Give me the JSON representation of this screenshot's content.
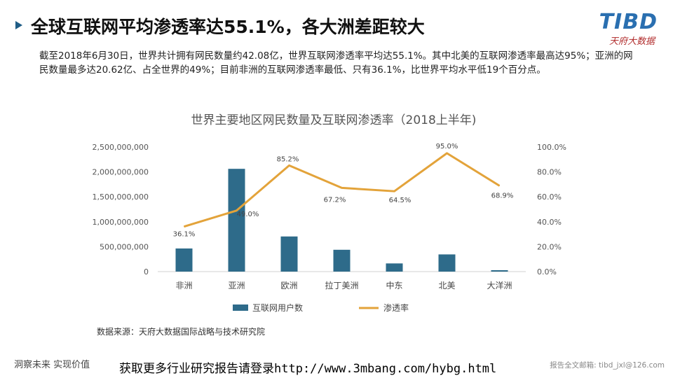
{
  "header": {
    "title": "全球互联网平均渗透率达55.1%，各大洲差距较大",
    "logo_text": "TIBD",
    "logo_sub": "天府大数据"
  },
  "summary": "截至2018年6月30日，世界共计拥有网民数量约42.08亿，世界互联网渗透率平均达55.1%。其中北美的互联网渗透率最高达95%；亚洲的网民数量最多达20.62亿、占全世界的49%；目前非洲的互联网渗透率最低、只有36.1%，比世界平均水平低19个百分点。",
  "chart_data": {
    "type": "bar+line",
    "title": "世界主要地区网民数量及互联网渗透率（2018上半年)",
    "categories": [
      "非洲",
      "亚洲",
      "欧洲",
      "拉丁美洲",
      "中东",
      "北美",
      "大洋洲"
    ],
    "series": [
      {
        "name": "互联网用户数",
        "type": "bar",
        "axis": "left",
        "values": [
          464000000,
          2062000000,
          705000000,
          438000000,
          164000000,
          345000000,
          28000000
        ]
      },
      {
        "name": "渗透率",
        "type": "line",
        "axis": "right",
        "values": [
          36.1,
          49.0,
          85.2,
          67.2,
          64.5,
          95.0,
          68.9
        ],
        "labels": [
          "36.1%",
          "49.0%",
          "85.2%",
          "67.2%",
          "64.5%",
          "95.0%",
          "68.9%"
        ]
      }
    ],
    "left_axis": {
      "ylim": [
        0,
        2500000000
      ],
      "ticks": [
        "0",
        "500,000,000",
        "1,000,000,000",
        "1,500,000,000",
        "2,000,000,000",
        "2,500,000,000"
      ]
    },
    "right_axis": {
      "ylim": [
        0,
        100
      ],
      "ticks": [
        "0.0%",
        "20.0%",
        "40.0%",
        "60.0%",
        "80.0%",
        "100.0%"
      ]
    },
    "grid": false,
    "legend_position": "bottom",
    "colors": {
      "bar": "#2e6b8a",
      "line": "#e3a33a"
    },
    "source": "数据来源：天府大数据国际战略与技术研究院"
  },
  "footer": {
    "slogan": "洞察未来 实现价值",
    "promo": "获取更多行业研究报告请登录http://www.3mbang.com/hybg.html",
    "contact": "报告全文邮箱: tibd_jxl@126.com"
  }
}
